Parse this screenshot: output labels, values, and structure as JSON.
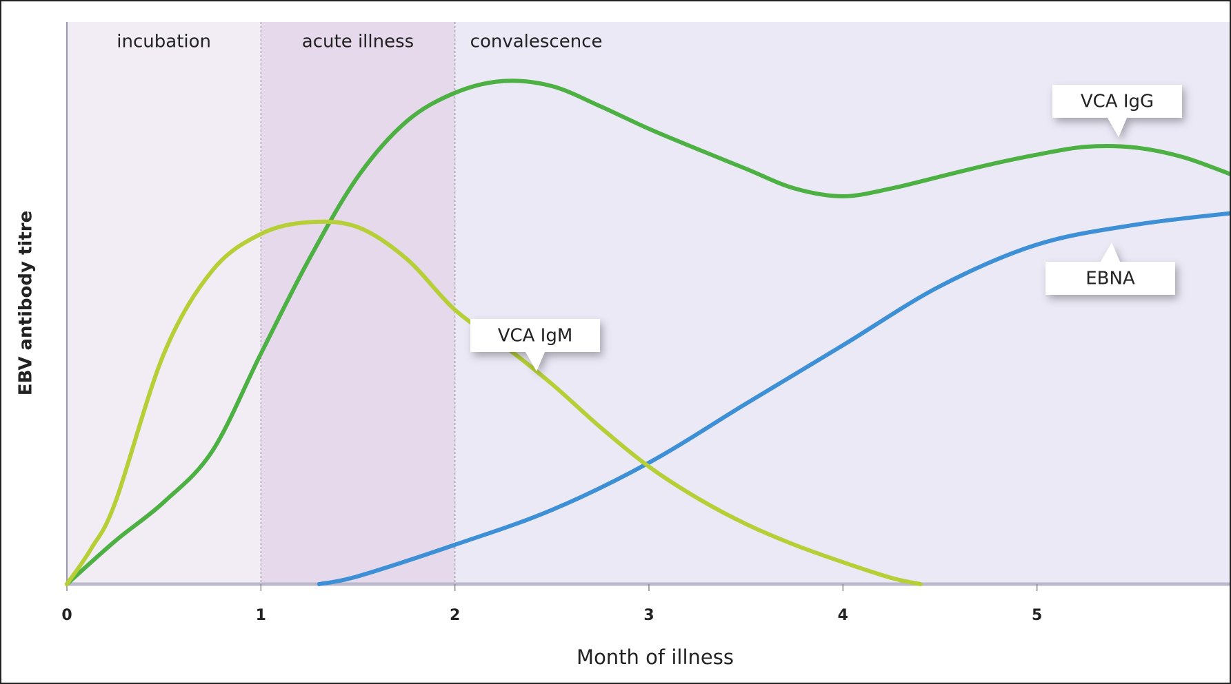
{
  "chart_data": {
    "type": "line",
    "x_label": "Month of illness",
    "y_label": "EBV antibody titre",
    "xlim": [
      0,
      6
    ],
    "xticks": [
      0,
      1,
      2,
      3,
      4,
      5
    ],
    "ylim": [
      0,
      100
    ],
    "phases": [
      {
        "label": "incubation",
        "start": 0,
        "end": 1,
        "color": "#f2edf5"
      },
      {
        "label": "acute illness",
        "start": 1,
        "end": 2,
        "color": "#e6d9eb"
      },
      {
        "label": "convalescence",
        "start": 2,
        "end": 6,
        "color": "#ebe9f6"
      }
    ],
    "series": [
      {
        "name": "VCA IgG",
        "color": "#4db043",
        "x": [
          0,
          0.25,
          0.5,
          0.75,
          1,
          1.25,
          1.5,
          1.75,
          2,
          2.25,
          2.5,
          2.75,
          3,
          3.25,
          3.5,
          3.75,
          4,
          4.25,
          4.5,
          4.75,
          5,
          5.25,
          5.5,
          5.75,
          6
        ],
        "values": [
          0,
          7.7,
          14.6,
          23.7,
          41,
          57.9,
          72.5,
          82.3,
          87.4,
          89.5,
          88.6,
          85,
          81,
          77.4,
          73.9,
          70.4,
          69,
          70.4,
          72.5,
          74.6,
          76.4,
          77.8,
          77.7,
          76,
          72.9
        ]
      },
      {
        "name": "EBNA",
        "color": "#3d8fd6",
        "x": [
          1.3,
          1.5,
          2,
          2.5,
          3,
          3.5,
          4,
          4.5,
          5,
          5.5,
          6
        ],
        "values": [
          0,
          1.4,
          7,
          13.2,
          21.6,
          32.1,
          42.5,
          53,
          60.4,
          63.9,
          66
        ]
      },
      {
        "name": "VCA IgM",
        "color": "#b6cf36",
        "x": [
          0,
          0.125,
          0.25,
          0.5,
          0.75,
          1,
          1.25,
          1.5,
          1.75,
          2,
          2.25,
          2.5,
          2.75,
          3,
          3.25,
          3.5,
          3.75,
          4,
          4.25,
          4.4
        ],
        "values": [
          0,
          6.3,
          14.6,
          41,
          55.8,
          62.3,
          64.4,
          63.5,
          57.9,
          48.8,
          42.5,
          35.6,
          27.9,
          20.9,
          15.3,
          10.7,
          7,
          3.9,
          1.1,
          0
        ]
      }
    ]
  }
}
